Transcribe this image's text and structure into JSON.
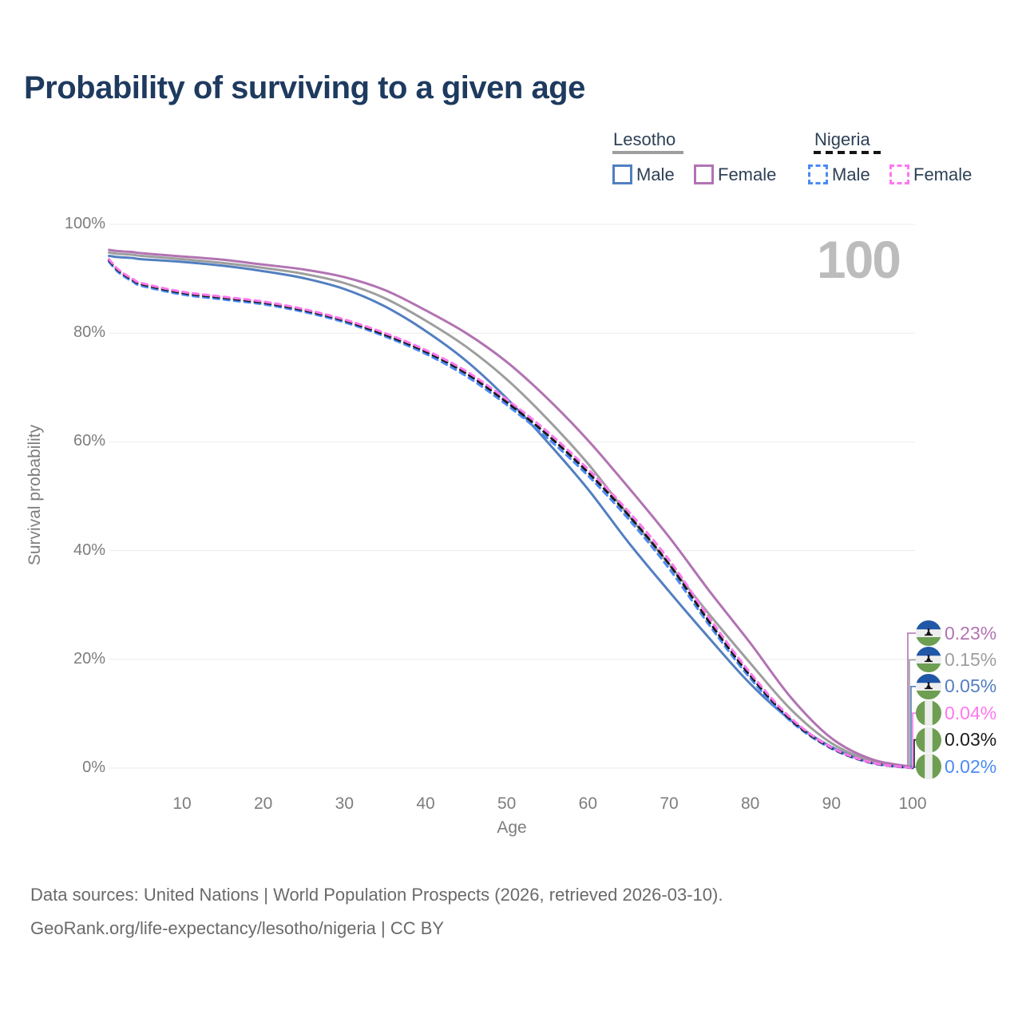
{
  "header": {
    "title": "Probability of surviving to a given age"
  },
  "legend": {
    "groups": [
      {
        "title": "Lesotho",
        "underline_style": "solid",
        "underline_color": "#9e9e9e",
        "items": [
          {
            "label": "Male",
            "color": "#527fc0",
            "dash": false
          },
          {
            "label": "Female",
            "color": "#b273b2",
            "dash": false
          }
        ]
      },
      {
        "title": "Nigeria",
        "underline_style": "dashed",
        "underline_color": "#151515",
        "items": [
          {
            "label": "Male",
            "color": "#4b8bf5",
            "dash": true
          },
          {
            "label": "Female",
            "color": "#ff77ee",
            "dash": true
          }
        ]
      }
    ]
  },
  "chart_data": {
    "type": "line",
    "title": "Probability of surviving to a given age",
    "xlabel": "Age",
    "ylabel": "Survival probability",
    "xlim": [
      1,
      100
    ],
    "ylim": [
      0,
      100
    ],
    "grid": "horizontal",
    "watermark": "100",
    "x_ticks": [
      10,
      20,
      30,
      40,
      50,
      60,
      70,
      80,
      90,
      100
    ],
    "y_ticks": [
      {
        "value": 0,
        "label": "0%"
      },
      {
        "value": 20,
        "label": "20%"
      },
      {
        "value": 40,
        "label": "40%"
      },
      {
        "value": 60,
        "label": "60%"
      },
      {
        "value": 80,
        "label": "80%"
      },
      {
        "value": 100,
        "label": "100%"
      }
    ],
    "ages": [
      1,
      2,
      3,
      4,
      5,
      10,
      15,
      20,
      25,
      30,
      35,
      40,
      45,
      50,
      55,
      60,
      65,
      70,
      75,
      80,
      85,
      90,
      95,
      100
    ],
    "series": [
      {
        "id": "lesotho-female",
        "country": "Lesotho",
        "sex": "Female",
        "flag": "lesotho",
        "color": "#b273b2",
        "dashed": false,
        "end_label": "0.23%",
        "values": [
          95.3,
          95.1,
          95.0,
          94.9,
          94.7,
          94.1,
          93.5,
          92.6,
          91.7,
          90.3,
          87.9,
          84.2,
          80.0,
          74.7,
          68.0,
          60.3,
          51.6,
          42.5,
          32.5,
          23.0,
          13.0,
          5.5,
          1.6,
          0.23
        ]
      },
      {
        "id": "lesotho-both",
        "country": "Lesotho",
        "sex": "Both",
        "flag": "lesotho",
        "color": "#9e9e9e",
        "dashed": false,
        "end_label": "0.15%",
        "values": [
          94.8,
          94.6,
          94.5,
          94.4,
          94.2,
          93.6,
          92.9,
          92.0,
          90.9,
          89.2,
          86.4,
          82.3,
          77.5,
          71.5,
          64.2,
          56.0,
          46.5,
          37.5,
          28.2,
          19.3,
          10.8,
          4.6,
          1.3,
          0.15
        ]
      },
      {
        "id": "lesotho-male",
        "country": "Lesotho",
        "sex": "Male",
        "flag": "lesotho",
        "color": "#527fc0",
        "dashed": false,
        "end_label": "0.05%",
        "values": [
          94.2,
          94.0,
          93.9,
          93.8,
          93.6,
          93.1,
          92.4,
          91.4,
          90.1,
          88.1,
          84.9,
          80.4,
          74.9,
          68.0,
          60.0,
          51.3,
          41.5,
          32.5,
          23.8,
          15.5,
          8.8,
          3.9,
          1.0,
          0.05
        ]
      },
      {
        "id": "nigeria-female",
        "country": "Nigeria",
        "sex": "Female",
        "flag": "nigeria",
        "color": "#ff77ee",
        "dashed": true,
        "end_label": "0.04%",
        "values": [
          93.6,
          91.9,
          90.8,
          89.9,
          89.2,
          87.6,
          86.7,
          85.8,
          84.4,
          82.5,
          80.0,
          76.9,
          73.0,
          67.8,
          61.9,
          55.0,
          47.2,
          38.3,
          27.5,
          17.5,
          9.2,
          3.8,
          1.0,
          0.04
        ]
      },
      {
        "id": "nigeria-both",
        "country": "Nigeria",
        "sex": "Both",
        "flag": "nigeria",
        "color": "#1a1a1a",
        "dashed": true,
        "end_label": "0.03%",
        "values": [
          93.4,
          91.7,
          90.6,
          89.7,
          89.0,
          87.4,
          86.5,
          85.6,
          84.2,
          82.3,
          79.7,
          76.6,
          72.6,
          67.3,
          61.3,
          54.4,
          46.5,
          37.5,
          26.8,
          17.0,
          8.9,
          3.7,
          0.95,
          0.03
        ]
      },
      {
        "id": "nigeria-male",
        "country": "Nigeria",
        "sex": "Male",
        "flag": "nigeria",
        "color": "#4b8bf5",
        "dashed": true,
        "end_label": "0.02%",
        "values": [
          93.1,
          91.4,
          90.3,
          89.4,
          88.7,
          87.1,
          86.2,
          85.3,
          83.9,
          82.0,
          79.4,
          76.2,
          72.1,
          66.8,
          60.7,
          53.8,
          45.8,
          36.7,
          26.2,
          16.5,
          8.6,
          3.6,
          0.9,
          0.02
        ]
      }
    ]
  },
  "footer": {
    "line1": "Data sources: United Nations | World Population Prospects (2026, retrieved 2026-03-10).",
    "line2": "GeoRank.org/life-expectancy/lesotho/nigeria | CC BY"
  }
}
